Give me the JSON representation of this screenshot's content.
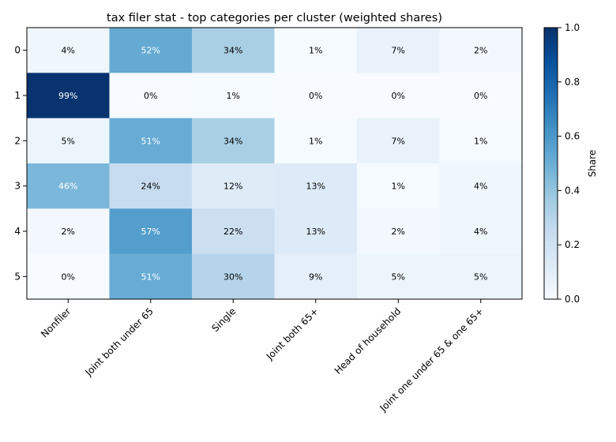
{
  "chart_data": {
    "type": "heatmap",
    "title": "tax filer stat - top categories per cluster (weighted shares)",
    "x_categories": [
      "Nonfiler",
      "Joint both under 65",
      "Single",
      "Joint both 65+",
      "Head of household",
      "Joint one under 65 & one 65+"
    ],
    "y_categories": [
      "0",
      "1",
      "2",
      "3",
      "4",
      "5"
    ],
    "values": [
      [
        0.04,
        0.52,
        0.34,
        0.01,
        0.07,
        0.02
      ],
      [
        0.99,
        0.0,
        0.01,
        0.0,
        0.0,
        0.0
      ],
      [
        0.05,
        0.51,
        0.34,
        0.01,
        0.07,
        0.01
      ],
      [
        0.46,
        0.24,
        0.12,
        0.13,
        0.01,
        0.04
      ],
      [
        0.02,
        0.57,
        0.22,
        0.13,
        0.02,
        0.04
      ],
      [
        0.0,
        0.51,
        0.3,
        0.09,
        0.05,
        0.05
      ]
    ],
    "cell_labels": [
      [
        "4%",
        "52%",
        "34%",
        "1%",
        "7%",
        "2%"
      ],
      [
        "99%",
        "0%",
        "1%",
        "0%",
        "0%",
        "0%"
      ],
      [
        "5%",
        "51%",
        "34%",
        "1%",
        "7%",
        "1%"
      ],
      [
        "46%",
        "24%",
        "12%",
        "13%",
        "1%",
        "4%"
      ],
      [
        "2%",
        "57%",
        "22%",
        "13%",
        "2%",
        "4%"
      ],
      [
        "0%",
        "51%",
        "30%",
        "9%",
        "5%",
        "5%"
      ]
    ],
    "colormap": "Blues",
    "vmin": 0.0,
    "vmax": 1.0,
    "colorbar": {
      "label": "Share",
      "ticks": [
        "0.0",
        "0.2",
        "0.4",
        "0.6",
        "0.8",
        "1.0"
      ]
    }
  }
}
